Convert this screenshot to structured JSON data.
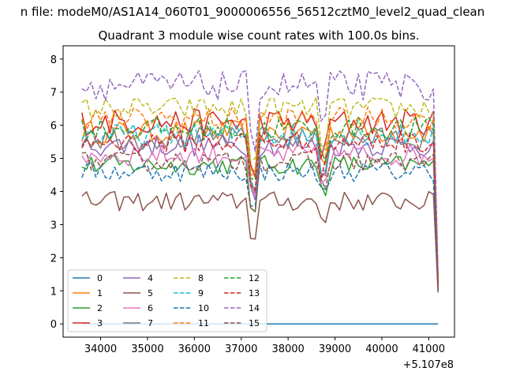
{
  "chart_data": {
    "type": "line",
    "suptitle": "n file: modeM0/AS1A14_060T01_9000006556_56512cztM0_level2_quad_clean",
    "title": "Quadrant 3 module wise count rates with 100.0s bins.",
    "xlabel": "",
    "ylabel": "",
    "x_offset_label": "+5.107e8",
    "xlim": [
      33200,
      41550
    ],
    "ylim": [
      -0.4,
      8.4
    ],
    "xticks": [
      34000,
      35000,
      36000,
      37000,
      38000,
      39000,
      40000,
      41000
    ],
    "yticks": [
      0,
      1,
      2,
      3,
      4,
      5,
      6,
      7,
      8
    ],
    "x_start": 33600,
    "x_step": 100,
    "x_end_drop": 41200,
    "legend": {
      "location": "lower-left",
      "columns": 4
    },
    "series": [
      {
        "name": "0",
        "color": "#1f77b4",
        "dash": "solid",
        "base": 0.0,
        "amp": 0.0,
        "end_value": 0.0
      },
      {
        "name": "1",
        "color": "#ff7f0e",
        "dash": "solid",
        "base": 5.8,
        "amp": 0.35,
        "end_value": 1.2
      },
      {
        "name": "2",
        "color": "#2ca02c",
        "dash": "solid",
        "base": 4.8,
        "amp": 0.3,
        "end_value": 1.0
      },
      {
        "name": "3",
        "color": "#d62728",
        "dash": "solid",
        "base": 6.1,
        "amp": 0.4,
        "end_value": 1.3
      },
      {
        "name": "4",
        "color": "#9467bd",
        "dash": "solid",
        "base": 5.4,
        "amp": 0.35,
        "end_value": 1.1
      },
      {
        "name": "5",
        "color": "#8c564b",
        "dash": "solid",
        "base": 3.7,
        "amp": 0.3,
        "end_value": 0.95
      },
      {
        "name": "6",
        "color": "#e377c2",
        "dash": "solid",
        "base": 5.1,
        "amp": 0.35,
        "end_value": 1.1
      },
      {
        "name": "7",
        "color": "#7f7f7f",
        "dash": "solid",
        "base": 5.6,
        "amp": 0.35,
        "end_value": 1.2
      },
      {
        "name": "8",
        "color": "#bcbd22",
        "dash": "dashed",
        "base": 6.5,
        "amp": 0.35,
        "end_value": 1.4
      },
      {
        "name": "9",
        "color": "#17becf",
        "dash": "dashed",
        "base": 5.7,
        "amp": 0.35,
        "end_value": 1.2
      },
      {
        "name": "10",
        "color": "#1f77b4",
        "dash": "dashed",
        "base": 4.6,
        "amp": 0.3,
        "end_value": 1.0
      },
      {
        "name": "11",
        "color": "#ff7f0e",
        "dash": "dashed",
        "base": 6.2,
        "amp": 0.35,
        "end_value": 1.3
      },
      {
        "name": "12",
        "color": "#2ca02c",
        "dash": "dashed",
        "base": 5.9,
        "amp": 0.35,
        "end_value": 1.25
      },
      {
        "name": "13",
        "color": "#d62728",
        "dash": "dashed",
        "base": 5.5,
        "amp": 0.35,
        "end_value": 1.15
      },
      {
        "name": "14",
        "color": "#9467bd",
        "dash": "dashed",
        "base": 7.2,
        "amp": 0.45,
        "end_value": 1.5
      },
      {
        "name": "15",
        "color": "#8c564b",
        "dash": "dashed",
        "base": 4.9,
        "amp": 0.3,
        "end_value": 1.05
      }
    ]
  }
}
